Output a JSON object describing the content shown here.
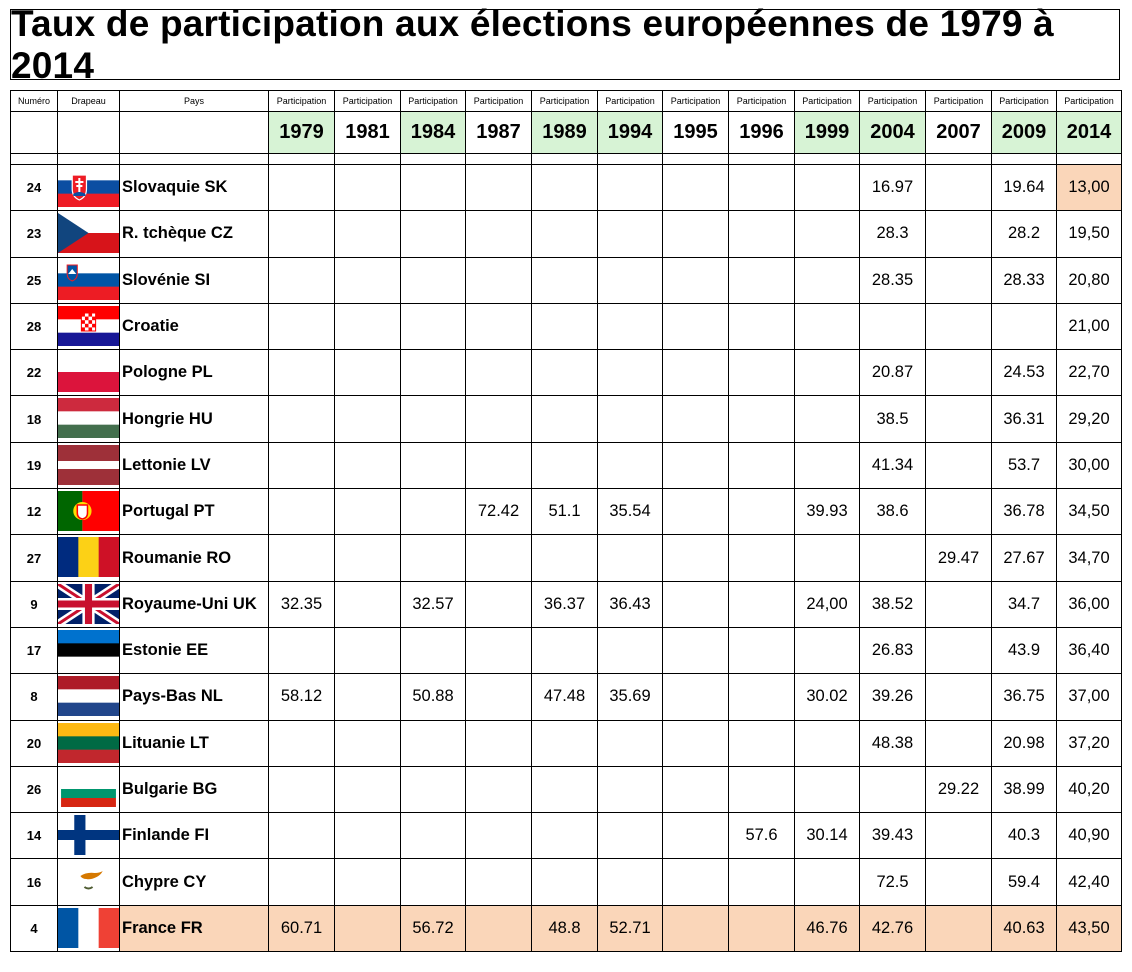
{
  "title": "Taux de participation aux élections européennes de 1979 à 2014",
  "headers": {
    "numero": "Numéro",
    "drapeau": "Drapeau",
    "pays": "Pays",
    "participation": "Participation"
  },
  "years": [
    {
      "label": "1979",
      "election": true
    },
    {
      "label": "1981",
      "election": false
    },
    {
      "label": "1984",
      "election": true
    },
    {
      "label": "1987",
      "election": false
    },
    {
      "label": "1989",
      "election": true
    },
    {
      "label": "1994",
      "election": true
    },
    {
      "label": "1995",
      "election": false
    },
    {
      "label": "1996",
      "election": false
    },
    {
      "label": "1999",
      "election": true
    },
    {
      "label": "2004",
      "election": true
    },
    {
      "label": "2007",
      "election": false
    },
    {
      "label": "2009",
      "election": true
    },
    {
      "label": "2014",
      "election": true
    }
  ],
  "rows": [
    {
      "num": "24",
      "flag": "slovakia-flag",
      "country": "Slovaquie SK",
      "values": [
        "",
        "",
        "",
        "",
        "",
        "",
        "",
        "",
        "",
        "16.97",
        "",
        "19.64",
        "13,00"
      ]
    },
    {
      "num": "23",
      "flag": "czechia-flag",
      "country": "R. tchèque CZ",
      "values": [
        "",
        "",
        "",
        "",
        "",
        "",
        "",
        "",
        "",
        "28.3",
        "",
        "28.2",
        "19,50"
      ]
    },
    {
      "num": "25",
      "flag": "slovenia-flag",
      "country": "Slovénie SI",
      "values": [
        "",
        "",
        "",
        "",
        "",
        "",
        "",
        "",
        "",
        "28.35",
        "",
        "28.33",
        "20,80"
      ]
    },
    {
      "num": "28",
      "flag": "croatia-flag",
      "country": "Croatie",
      "values": [
        "",
        "",
        "",
        "",
        "",
        "",
        "",
        "",
        "",
        "",
        "",
        "",
        "21,00"
      ]
    },
    {
      "num": "22",
      "flag": "poland-flag",
      "country": "Pologne PL",
      "values": [
        "",
        "",
        "",
        "",
        "",
        "",
        "",
        "",
        "",
        "20.87",
        "",
        "24.53",
        "22,70"
      ]
    },
    {
      "num": "18",
      "flag": "hungary-flag",
      "country": "Hongrie HU",
      "values": [
        "",
        "",
        "",
        "",
        "",
        "",
        "",
        "",
        "",
        "38.5",
        "",
        "36.31",
        "29,20"
      ]
    },
    {
      "num": "19",
      "flag": "latvia-flag",
      "country": "Lettonie LV",
      "values": [
        "",
        "",
        "",
        "",
        "",
        "",
        "",
        "",
        "",
        "41.34",
        "",
        "53.7",
        "30,00"
      ]
    },
    {
      "num": "12",
      "flag": "portugal-flag",
      "country": "Portugal PT",
      "values": [
        "",
        "",
        "",
        "72.42",
        "51.1",
        "35.54",
        "",
        "",
        "39.93",
        "38.6",
        "",
        "36.78",
        "34,50"
      ]
    },
    {
      "num": "27",
      "flag": "romania-flag",
      "country": "Roumanie RO",
      "values": [
        "",
        "",
        "",
        "",
        "",
        "",
        "",
        "",
        "",
        "",
        "29.47",
        "27.67",
        "34,70"
      ]
    },
    {
      "num": "9",
      "flag": "united-kingdom-flag",
      "country": "Royaume-Uni UK",
      "values": [
        "32.35",
        "",
        "32.57",
        "",
        "36.37",
        "36.43",
        "",
        "",
        "24,00",
        "38.52",
        "",
        "34.7",
        "36,00"
      ]
    },
    {
      "num": "17",
      "flag": "estonia-flag",
      "country": "Estonie EE",
      "values": [
        "",
        "",
        "",
        "",
        "",
        "",
        "",
        "",
        "",
        "26.83",
        "",
        "43.9",
        "36,40"
      ]
    },
    {
      "num": "8",
      "flag": "netherlands-flag",
      "country": "Pays-Bas NL",
      "values": [
        "58.12",
        "",
        "50.88",
        "",
        "47.48",
        "35.69",
        "",
        "",
        "30.02",
        "39.26",
        "",
        "36.75",
        "37,00"
      ]
    },
    {
      "num": "20",
      "flag": "lithuania-flag",
      "country": "Lituanie LT",
      "values": [
        "",
        "",
        "",
        "",
        "",
        "",
        "",
        "",
        "",
        "48.38",
        "",
        "20.98",
        "37,20"
      ]
    },
    {
      "num": "26",
      "flag": "bulgaria-flag",
      "country": "Bulgarie BG",
      "values": [
        "",
        "",
        "",
        "",
        "",
        "",
        "",
        "",
        "",
        "",
        "29.22",
        "38.99",
        "40,20"
      ]
    },
    {
      "num": "14",
      "flag": "finland-flag",
      "country": "Finlande FI",
      "values": [
        "",
        "",
        "",
        "",
        "",
        "",
        "",
        "57.6",
        "30.14",
        "39.43",
        "",
        "40.3",
        "40,90"
      ]
    },
    {
      "num": "16",
      "flag": "cyprus-flag",
      "country": "Chypre CY",
      "values": [
        "",
        "",
        "",
        "",
        "",
        "",
        "",
        "",
        "",
        "72.5",
        "",
        "59.4",
        "42,40"
      ]
    },
    {
      "num": "4",
      "flag": "france-flag",
      "country": "France FR",
      "values": [
        "60.71",
        "",
        "56.72",
        "",
        "48.8",
        "52.71",
        "",
        "",
        "46.76",
        "42.76",
        "",
        "40.63",
        "43,50"
      ],
      "highlight": true
    }
  ],
  "colors": {
    "election_year_bg": "#d7f3d5",
    "highlight_bg": "#fad6b9"
  }
}
